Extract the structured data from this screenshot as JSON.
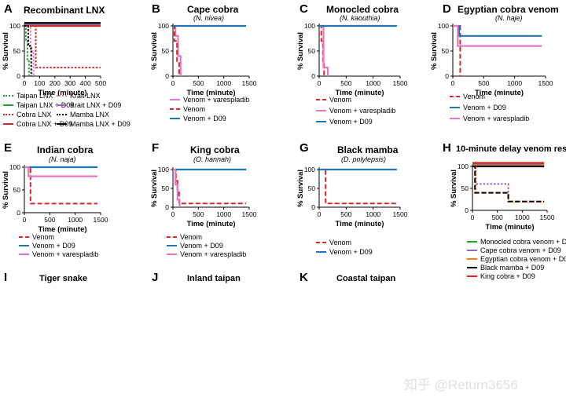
{
  "figure": {
    "watermark": "知乎 @Return3656"
  },
  "chart_data": [
    {
      "panel_label": "A",
      "type": "line",
      "title": "Recombinant LNX",
      "subtitle": "",
      "xlabel": "Time (minute)",
      "ylabel": "% Survival",
      "xlim": [
        0,
        500
      ],
      "ylim": [
        0,
        100
      ],
      "xticks": [
        "0",
        "100",
        "200",
        "300",
        "400",
        "500"
      ],
      "yticks": [
        "0",
        "50",
        "100"
      ],
      "series": [
        {
          "name": "Taipan LNX",
          "color": "#2ca02c",
          "dash": "dot",
          "x": [
            0,
            10,
            10,
            20,
            20,
            30,
            30
          ],
          "y": [
            100,
            100,
            70,
            70,
            30,
            30,
            0
          ]
        },
        {
          "name": "Taipan LNX + D09",
          "color": "#2ca02c",
          "dash": "solid",
          "x": [
            0,
            500
          ],
          "y": [
            102,
            102
          ]
        },
        {
          "name": "Cobra LNX",
          "color": "#d62728",
          "dash": "dot",
          "x": [
            0,
            75,
            75,
            500
          ],
          "y": [
            100,
            100,
            17,
            17
          ]
        },
        {
          "name": "Cobra LNX + D09",
          "color": "#d62728",
          "dash": "solid",
          "x": [
            0,
            500
          ],
          "y": [
            100,
            100
          ]
        },
        {
          "name": "Krait LNX",
          "color": "#e377c2",
          "dash": "dot",
          "x": [
            0,
            40,
            40,
            60,
            60
          ],
          "y": [
            100,
            100,
            50,
            50,
            0
          ]
        },
        {
          "name": "Krait LNX + D09",
          "color": "#9467bd",
          "dash": "solid",
          "x": [
            0,
            500
          ],
          "y": [
            104,
            104
          ]
        },
        {
          "name": "Mamba LNX",
          "color": "#000000",
          "dash": "dot",
          "x": [
            0,
            25,
            25,
            45,
            45
          ],
          "y": [
            100,
            100,
            60,
            60,
            0
          ]
        },
        {
          "name": "Mamba LNX + D09",
          "color": "#000000",
          "dash": "solid",
          "x": [
            0,
            500
          ],
          "y": [
            106,
            106
          ]
        }
      ]
    },
    {
      "panel_label": "B",
      "type": "line",
      "title": "Cape cobra",
      "subtitle": "(N. nivea)",
      "xlabel": "Time (minute)",
      "ylabel": "% Survival",
      "xlim": [
        0,
        1500
      ],
      "ylim": [
        0,
        100
      ],
      "xticks": [
        "0",
        "500",
        "1000",
        "1500"
      ],
      "yticks": [
        "0",
        "50",
        "100"
      ],
      "series": [
        {
          "name": "Venom + varespladib",
          "color": "#e377c2",
          "dash": "solid",
          "x": [
            0,
            50,
            50,
            100,
            100,
            150,
            150
          ],
          "y": [
            100,
            100,
            80,
            80,
            40,
            40,
            0
          ]
        },
        {
          "name": "Venom",
          "color": "#d62728",
          "dash": "dash",
          "x": [
            0,
            30,
            30,
            80,
            80,
            120,
            120
          ],
          "y": [
            100,
            100,
            70,
            70,
            30,
            30,
            0
          ]
        },
        {
          "name": "Venom + D09",
          "color": "#1f77b4",
          "dash": "solid",
          "x": [
            0,
            1440
          ],
          "y": [
            100,
            100
          ]
        }
      ]
    },
    {
      "panel_label": "C",
      "type": "line",
      "title": "Monocled cobra",
      "subtitle": "(N. kaouthia)",
      "xlabel": "Time (minute)",
      "ylabel": "% Survival",
      "xlim": [
        0,
        1500
      ],
      "ylim": [
        0,
        100
      ],
      "xticks": [
        "0",
        "500",
        "1000",
        "1500"
      ],
      "yticks": [
        "0",
        "50",
        "100"
      ],
      "series": [
        {
          "name": "Venom",
          "color": "#d62728",
          "dash": "dash",
          "x": [
            0,
            40,
            40,
            70,
            70,
            90,
            90
          ],
          "y": [
            100,
            100,
            70,
            70,
            30,
            30,
            0
          ]
        },
        {
          "name": "Venom + varespladib",
          "color": "#e377c2",
          "dash": "solid",
          "x": [
            0,
            80,
            80,
            160,
            160
          ],
          "y": [
            100,
            100,
            17,
            17,
            0
          ]
        },
        {
          "name": "Venom + D09",
          "color": "#1f77b4",
          "dash": "solid",
          "x": [
            0,
            1440
          ],
          "y": [
            100,
            100
          ]
        }
      ]
    },
    {
      "panel_label": "D",
      "type": "line",
      "title": "Egyptian cobra venom",
      "subtitle": "(N. haje)",
      "xlabel": "Time (minute)",
      "ylabel": "% Survival",
      "xlim": [
        0,
        1500
      ],
      "ylim": [
        0,
        100
      ],
      "xticks": [
        "0",
        "500",
        "1000",
        "1500"
      ],
      "yticks": [
        "0",
        "50",
        "100"
      ],
      "series": [
        {
          "name": "Venom",
          "color": "#d62728",
          "dash": "dash",
          "x": [
            0,
            120,
            120
          ],
          "y": [
            100,
            100,
            0
          ]
        },
        {
          "name": "Venom + D09",
          "color": "#1f77b4",
          "dash": "solid",
          "x": [
            0,
            100,
            100,
            1440
          ],
          "y": [
            100,
            100,
            80,
            80
          ]
        },
        {
          "name": "Venom + varespladib",
          "color": "#e377c2",
          "dash": "solid",
          "x": [
            0,
            80,
            80,
            1440
          ],
          "y": [
            100,
            100,
            60,
            60
          ]
        }
      ]
    },
    {
      "panel_label": "E",
      "type": "line",
      "title": "Indian cobra",
      "subtitle": "(N. naja)",
      "xlabel": "Time (minute)",
      "ylabel": "% Survival",
      "xlim": [
        0,
        1500
      ],
      "ylim": [
        0,
        100
      ],
      "xticks": [
        "0",
        "500",
        "1000",
        "1500"
      ],
      "yticks": [
        "0",
        "50",
        "100"
      ],
      "series": [
        {
          "name": "Venom",
          "color": "#d62728",
          "dash": "dash",
          "x": [
            0,
            120,
            120,
            1440
          ],
          "y": [
            100,
            100,
            20,
            20
          ]
        },
        {
          "name": "Venom + D09",
          "color": "#1f77b4",
          "dash": "solid",
          "x": [
            0,
            1440
          ],
          "y": [
            100,
            100
          ]
        },
        {
          "name": "Venom + varespladib",
          "color": "#e377c2",
          "dash": "solid",
          "x": [
            0,
            80,
            80,
            1440
          ],
          "y": [
            100,
            100,
            80,
            80
          ]
        }
      ]
    },
    {
      "panel_label": "F",
      "type": "line",
      "title": "King cobra",
      "subtitle": "(O. hannah)",
      "xlabel": "Time (minute)",
      "ylabel": "% Survival",
      "xlim": [
        0,
        1500
      ],
      "ylim": [
        0,
        100
      ],
      "xticks": [
        "0",
        "500",
        "1000",
        "1500"
      ],
      "yticks": [
        "0",
        "50",
        "100"
      ],
      "series": [
        {
          "name": "Venom",
          "color": "#d62728",
          "dash": "dash",
          "x": [
            0,
            60,
            60,
            90,
            90,
            120,
            120,
            1440
          ],
          "y": [
            100,
            100,
            70,
            70,
            40,
            40,
            10,
            10
          ]
        },
        {
          "name": "Venom + D09",
          "color": "#1f77b4",
          "dash": "solid",
          "x": [
            0,
            1440
          ],
          "y": [
            100,
            100
          ]
        },
        {
          "name": "Venom + varespladib",
          "color": "#e377c2",
          "dash": "solid",
          "x": [
            0,
            50,
            50,
            90,
            90,
            130,
            130
          ],
          "y": [
            100,
            100,
            60,
            60,
            20,
            20,
            0
          ]
        }
      ]
    },
    {
      "panel_label": "G",
      "type": "line",
      "title": "Black mamba",
      "subtitle": "(D. polylepsis)",
      "xlabel": "Time (minute)",
      "ylabel": "% Survival",
      "xlim": [
        0,
        1500
      ],
      "ylim": [
        0,
        100
      ],
      "xticks": [
        "0",
        "500",
        "1000",
        "1500"
      ],
      "yticks": [
        "0",
        "50",
        "100"
      ],
      "series": [
        {
          "name": "Venom",
          "color": "#d62728",
          "dash": "dash",
          "x": [
            0,
            120,
            120,
            1440
          ],
          "y": [
            100,
            100,
            10,
            10
          ]
        },
        {
          "name": "Venom + D09",
          "color": "#1f77b4",
          "dash": "solid",
          "x": [
            0,
            1440
          ],
          "y": [
            100,
            100
          ]
        }
      ]
    },
    {
      "panel_label": "H",
      "type": "line",
      "title": "10-minute delay venom rescue",
      "subtitle": "",
      "xlabel": "Time (minute)",
      "ylabel": "% Survival",
      "xlim": [
        0,
        1500
      ],
      "ylim": [
        0,
        100
      ],
      "xticks": [
        "0",
        "500",
        "1000",
        "1500"
      ],
      "yticks": [
        "0",
        "50",
        "100"
      ],
      "series": [
        {
          "name": "Monocled cobra venom + D09",
          "color": "#2ca02c",
          "dash": "solid",
          "x": [
            0,
            1440
          ],
          "y": [
            106,
            106
          ]
        },
        {
          "name": "Cape cobra venom + D09",
          "color": "#9467bd",
          "dash": "solid",
          "x": [
            0,
            1440
          ],
          "y": [
            104,
            104
          ]
        },
        {
          "name": "Egyptian cobra venom + D09",
          "color": "#ff7f0e",
          "dash": "solid",
          "x": [
            0,
            1440
          ],
          "y": [
            102,
            102
          ]
        },
        {
          "name": "Black mamba + D09",
          "color": "#000000",
          "dash": "solid",
          "x": [
            0,
            1440
          ],
          "y": [
            100,
            100
          ]
        },
        {
          "name": "King cobra + D09",
          "color": "#d62728",
          "dash": "solid",
          "x": [
            0,
            1440
          ],
          "y": [
            108,
            108
          ]
        },
        {
          "name": "",
          "color": "#9467bd",
          "dash": "dot",
          "x": [
            0,
            60,
            60,
            720,
            720,
            1440
          ],
          "y": [
            100,
            100,
            60,
            60,
            20,
            20
          ]
        },
        {
          "name": "",
          "color": "#ff7f0e",
          "dash": "dot",
          "x": [
            0,
            70,
            70,
            720,
            720,
            1440
          ],
          "y": [
            100,
            100,
            40,
            40,
            20,
            20
          ]
        },
        {
          "name": "",
          "color": "#000000",
          "dash": "dash",
          "x": [
            0,
            50,
            50,
            720,
            720,
            1440
          ],
          "y": [
            100,
            100,
            40,
            40,
            20,
            20
          ]
        }
      ]
    }
  ],
  "cut_panels": [
    {
      "label": "I",
      "title": "Tiger snake"
    },
    {
      "label": "J",
      "title": "Inland taipan"
    },
    {
      "label": "K",
      "title": "Coastal taipan"
    }
  ]
}
